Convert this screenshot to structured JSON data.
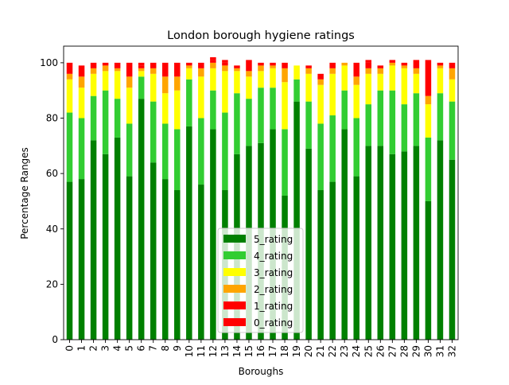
{
  "chart_data": {
    "type": "bar",
    "stacked": true,
    "title": "London borough hygiene ratings",
    "xlabel": "Boroughs",
    "ylabel": "Percentage Ranges",
    "ylim": [
      0,
      106
    ],
    "yticks": [
      0,
      20,
      40,
      60,
      80,
      100
    ],
    "grid": false,
    "legend_position": "lower center",
    "categories": [
      "0",
      "1",
      "2",
      "3",
      "4",
      "5",
      "6",
      "7",
      "8",
      "9",
      "10",
      "11",
      "12",
      "13",
      "14",
      "15",
      "16",
      "17",
      "18",
      "19",
      "20",
      "21",
      "22",
      "23",
      "24",
      "25",
      "26",
      "27",
      "28",
      "29",
      "30",
      "31",
      "32"
    ],
    "series": [
      {
        "name": "5_rating",
        "color": "#008000",
        "values": [
          57,
          58,
          72,
          67,
          73,
          59,
          87,
          64,
          58,
          54,
          77,
          56,
          76,
          54,
          67,
          70,
          71,
          76,
          52,
          86,
          69,
          54,
          57,
          76,
          59,
          70,
          70,
          67,
          68,
          70,
          50,
          72,
          65
        ]
      },
      {
        "name": "4_rating",
        "color": "#32cd32",
        "values": [
          25,
          22,
          16,
          23,
          14,
          19,
          8,
          22,
          20,
          22,
          17,
          24,
          14,
          28,
          22,
          17,
          20,
          15,
          24,
          8,
          17,
          24,
          24,
          14,
          21,
          15,
          20,
          23,
          17,
          19,
          23,
          17,
          21
        ]
      },
      {
        "name": "3_rating",
        "color": "#ffff00",
        "values": [
          12,
          11,
          8,
          7,
          10,
          13,
          2,
          10,
          11,
          14,
          4,
          15,
          8,
          15,
          8,
          8,
          6,
          7,
          17,
          5,
          10,
          14,
          15,
          9,
          12,
          11,
          6,
          9,
          13,
          7,
          12,
          9,
          8
        ]
      },
      {
        "name": "2_rating",
        "color": "#ffa500",
        "values": [
          2,
          4,
          2,
          2,
          1,
          4,
          1,
          2,
          6,
          5,
          1,
          3,
          2,
          2,
          1,
          2,
          2,
          1,
          5,
          0,
          2,
          2,
          2,
          1,
          3,
          2,
          2,
          1,
          1,
          2,
          3,
          1,
          4
        ]
      },
      {
        "name": "1_rating",
        "color": "#ff0000",
        "values": [
          4,
          4,
          2,
          1,
          2,
          5,
          1,
          2,
          5,
          5,
          1,
          2,
          1,
          1,
          1,
          4,
          1,
          1,
          2,
          0,
          1,
          2,
          2,
          0,
          5,
          2,
          1,
          1,
          1,
          3,
          13,
          1,
          2
        ]
      },
      {
        "name": "0_rating",
        "color": "#ff0000",
        "values": [
          0,
          0,
          0,
          0,
          0,
          0,
          1,
          0,
          0,
          0,
          0,
          0,
          1,
          1,
          0,
          0,
          0,
          0,
          0,
          0,
          0,
          0,
          0,
          0,
          0,
          1,
          0,
          0,
          0,
          0,
          0,
          0,
          0
        ]
      }
    ]
  }
}
